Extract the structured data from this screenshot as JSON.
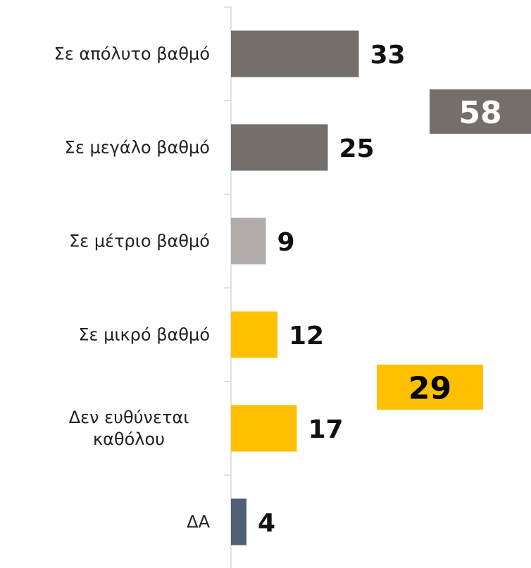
{
  "chart_data": {
    "type": "bar",
    "orientation": "horizontal",
    "categories": [
      "Σε απόλυτο βαθμό",
      "Σε μεγάλο βαθμό",
      "Σε μέτριο βαθμό",
      "Σε μικρό βαθμό",
      "Δεν ευθύνεται καθόλου",
      "ΔΑ"
    ],
    "values": [
      33,
      25,
      9,
      12,
      17,
      4
    ],
    "colors": [
      "#756f6c",
      "#756f6c",
      "#b1acaa",
      "#ffc000",
      "#ffc000",
      "#4f5f75"
    ],
    "annotations": [
      {
        "value": 58,
        "color": "#756f6c",
        "text_color": "#ffffff"
      },
      {
        "value": 29,
        "color": "#ffc000",
        "text_color": "#000000"
      }
    ]
  }
}
